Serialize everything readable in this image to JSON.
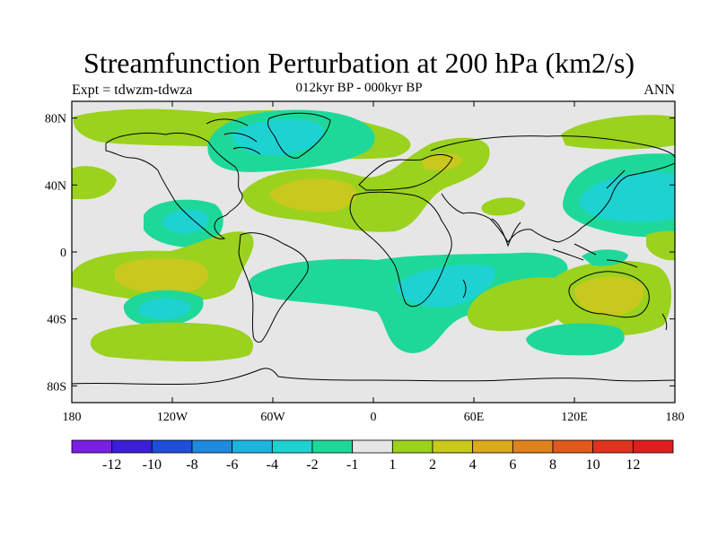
{
  "figure": {
    "title": "Streamfunction Perturbation at 200 hPa (km2/s)",
    "subtitle": "012kyr BP - 000kyr BP",
    "left_label": "Expt = tdwzm-tdwza",
    "right_label": "ANN"
  },
  "map": {
    "projection": "cylindrical-equidistant",
    "lon_range": [
      -180,
      180
    ],
    "lat_range": [
      -90,
      90
    ],
    "lat_ticks": [
      {
        "label": "80N",
        "lat": 80
      },
      {
        "label": "40N",
        "lat": 40
      },
      {
        "label": "0",
        "lat": 0
      },
      {
        "label": "40S",
        "lat": -40
      },
      {
        "label": "80S",
        "lat": -80
      }
    ],
    "lon_ticks": [
      {
        "label": "180",
        "lon": -180
      },
      {
        "label": "120W",
        "lon": -120
      },
      {
        "label": "60W",
        "lon": -60
      },
      {
        "label": "0",
        "lon": 0
      },
      {
        "label": "60E",
        "lon": 60
      },
      {
        "label": "120E",
        "lon": 120
      },
      {
        "label": "180",
        "lon": 180
      }
    ],
    "background_color": "#e6e6e6",
    "coastline_color": "#000000"
  },
  "colorbar": {
    "bins": [
      {
        "color": "#7a1ee0"
      },
      {
        "color": "#3a1ed8"
      },
      {
        "color": "#1e4fd8"
      },
      {
        "color": "#1e8ae0"
      },
      {
        "color": "#1eb4e0"
      },
      {
        "color": "#1ed2d2"
      },
      {
        "color": "#1ed89a"
      },
      {
        "color": "#e6e6e6"
      },
      {
        "color": "#9ad21e"
      },
      {
        "color": "#c8c81e"
      },
      {
        "color": "#dcaa1e"
      },
      {
        "color": "#e0821e"
      },
      {
        "color": "#e05a1e"
      },
      {
        "color": "#e0341e"
      },
      {
        "color": "#e01e1e"
      }
    ],
    "boundaries": [
      {
        "label": "-12"
      },
      {
        "label": "-10"
      },
      {
        "label": "-8"
      },
      {
        "label": "-6"
      },
      {
        "label": "-4"
      },
      {
        "label": "-2"
      },
      {
        "label": "-1"
      },
      {
        "label": "1"
      },
      {
        "label": "2"
      },
      {
        "label": "4"
      },
      {
        "label": "6"
      },
      {
        "label": "8"
      },
      {
        "label": "10"
      },
      {
        "label": "12"
      }
    ]
  },
  "contour_regions": [
    {
      "name": "north-atlantic-high-latitude-negative",
      "level": "-2",
      "color": "#1ed89a"
    },
    {
      "name": "greenland-negative",
      "level": "-4",
      "color": "#1ed2d2"
    },
    {
      "name": "north-atlantic-positive",
      "level": "4",
      "color": "#c8c81e"
    },
    {
      "name": "north-pacific-negative",
      "level": "-4",
      "color": "#1ed2d2"
    },
    {
      "name": "east-pacific-tropical-negative",
      "level": "-4",
      "color": "#1ed2d2"
    },
    {
      "name": "south-pacific-positive",
      "level": "4",
      "color": "#c8c81e"
    },
    {
      "name": "south-pacific-negative",
      "level": "-4",
      "color": "#1ed2d2"
    },
    {
      "name": "africa-indian-negative",
      "level": "-4",
      "color": "#1ed2d2"
    },
    {
      "name": "australia-positive",
      "level": "4",
      "color": "#c8c81e"
    },
    {
      "name": "southern-ocean-negative",
      "level": "-2",
      "color": "#1ed89a"
    }
  ]
}
